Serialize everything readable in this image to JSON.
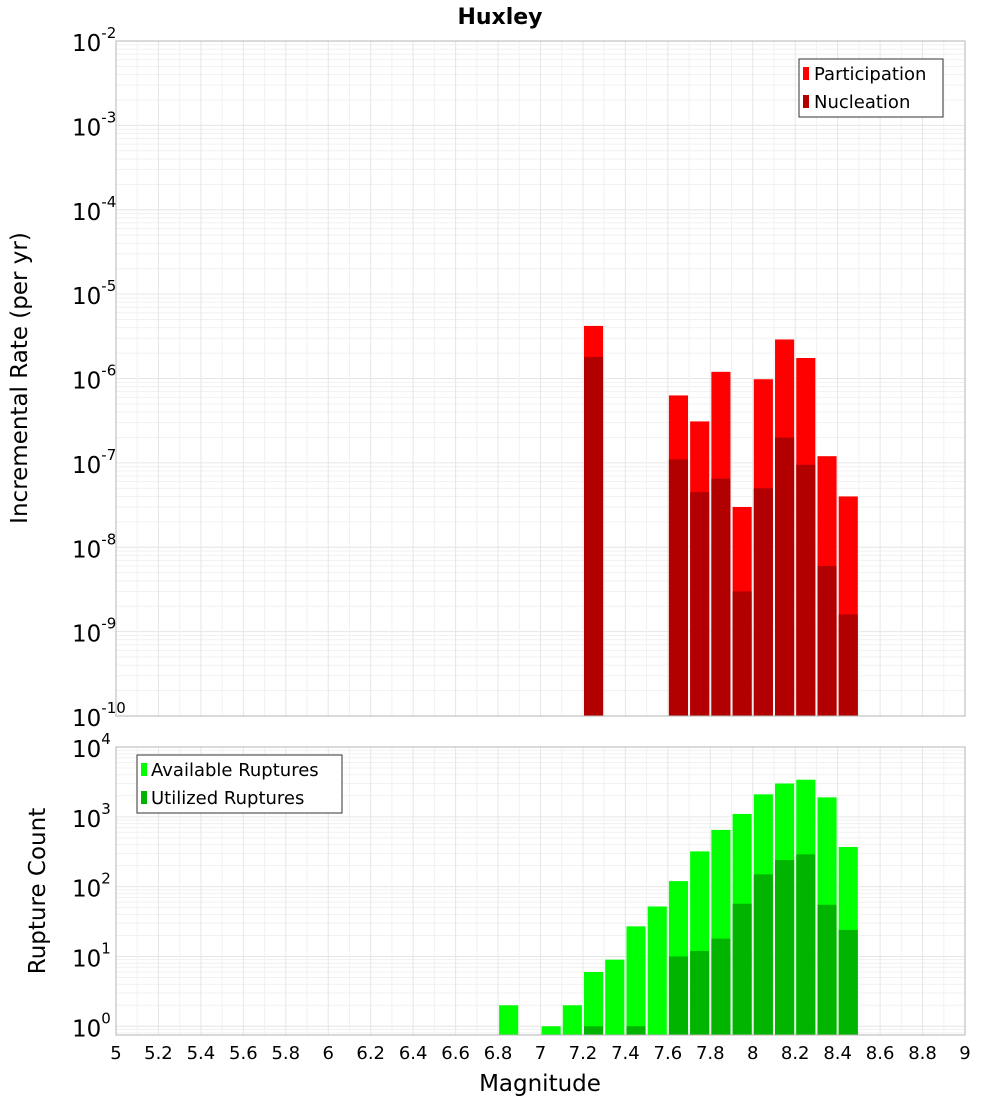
{
  "chart_data": [
    {
      "type": "bar",
      "title": "Huxley",
      "ylabel": "Incremental Rate (per yr)",
      "xlabel": "",
      "yscale": "log",
      "ylim": [
        1e-10,
        0.01
      ],
      "xlim": [
        5,
        9
      ],
      "y_tick_exponents": [
        "-10",
        "-9",
        "-8",
        "-7",
        "-6",
        "-5",
        "-4",
        "-3",
        "-2"
      ],
      "y_tick_base": "10",
      "grid": true,
      "legend_position": "top-right",
      "bar_width": 0.09,
      "series": [
        {
          "name": "Participation",
          "color": "#ff0000",
          "x": [
            7.25,
            7.65,
            7.75,
            7.85,
            7.95,
            8.05,
            8.15,
            8.25,
            8.35,
            8.45
          ],
          "values": [
            4.2e-06,
            6.3e-07,
            3.1e-07,
            1.2e-06,
            3e-08,
            9.8e-07,
            2.9e-06,
            1.75e-06,
            1.2e-07,
            4e-08
          ]
        },
        {
          "name": "Nucleation",
          "color": "#b20000",
          "x": [
            7.25,
            7.65,
            7.75,
            7.85,
            7.95,
            8.05,
            8.15,
            8.25,
            8.35,
            8.45
          ],
          "values": [
            1.8e-06,
            1.1e-07,
            4.5e-08,
            6.5e-08,
            3e-09,
            5e-08,
            2e-07,
            9.5e-08,
            6e-09,
            1.6e-09
          ]
        }
      ]
    },
    {
      "type": "bar",
      "title": "",
      "ylabel": "Rupture Count",
      "xlabel": "Magnitude",
      "yscale": "log",
      "ylim": [
        0.75,
        10000
      ],
      "xlim": [
        5,
        9
      ],
      "y_tick_exponents": [
        "0",
        "1",
        "2",
        "3",
        "4"
      ],
      "y_tick_base": "10",
      "x_tick_labels": [
        "5",
        "5.2",
        "5.4",
        "5.6",
        "5.8",
        "6",
        "6.2",
        "6.4",
        "6.6",
        "6.8",
        "7",
        "7.2",
        "7.4",
        "7.6",
        "7.8",
        "8",
        "8.2",
        "8.4",
        "8.6",
        "8.8",
        "9"
      ],
      "grid": true,
      "legend_position": "top-left",
      "bar_width": 0.09,
      "series": [
        {
          "name": "Available Ruptures",
          "color": "#00ff00",
          "x": [
            6.85,
            7.05,
            7.15,
            7.25,
            7.35,
            7.45,
            7.55,
            7.65,
            7.75,
            7.85,
            7.95,
            8.05,
            8.15,
            8.25,
            8.35,
            8.45
          ],
          "values": [
            2,
            1,
            2,
            6,
            9,
            27,
            52,
            120,
            320,
            650,
            1100,
            2100,
            3000,
            3400,
            1900,
            370
          ]
        },
        {
          "name": "Utilized Ruptures",
          "color": "#00b400",
          "x": [
            7.25,
            7.45,
            7.65,
            7.75,
            7.85,
            7.95,
            8.05,
            8.15,
            8.25,
            8.35,
            8.45
          ],
          "values": [
            1,
            1,
            10,
            12,
            18,
            57,
            150,
            240,
            290,
            55,
            24
          ]
        }
      ]
    }
  ]
}
